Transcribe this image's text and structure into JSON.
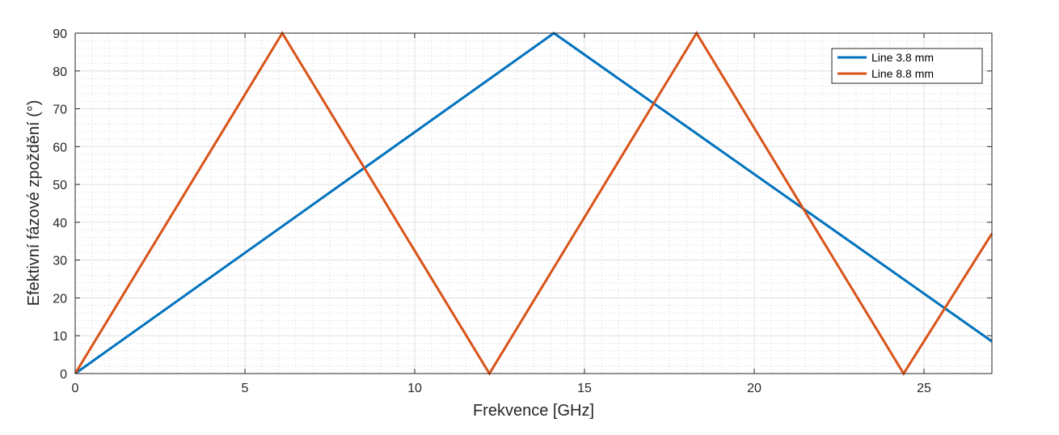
{
  "chart_data": {
    "type": "line",
    "title": "",
    "xlabel": "Frekvence [GHz]",
    "ylabel": "Efektivní fázové zpoždění (°)",
    "xlim": [
      0,
      27
    ],
    "ylim": [
      0,
      90
    ],
    "xticks": [
      0,
      5,
      10,
      15,
      20,
      25
    ],
    "yticks": [
      0,
      10,
      20,
      30,
      40,
      50,
      60,
      70,
      80,
      90
    ],
    "grid": true,
    "minor_grid": true,
    "legend_position": "top-right",
    "series": [
      {
        "name": "Line 3.8 mm",
        "color": "#0072BD",
        "x": [
          0,
          14.1,
          27
        ],
        "y": [
          0,
          90,
          8.5
        ]
      },
      {
        "name": "Line 8.8 mm",
        "color": "#D95319",
        "x": [
          0,
          6.1,
          12.2,
          18.3,
          24.4,
          27
        ],
        "y": [
          0,
          90,
          0,
          90,
          0,
          37
        ]
      }
    ]
  }
}
